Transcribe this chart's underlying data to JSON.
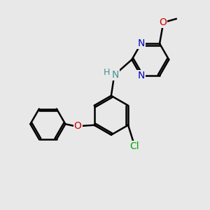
{
  "bg_color": "#e8e8e8",
  "bond_color": "#000000",
  "bond_width": 1.8,
  "atom_colors": {
    "N": "#0000cc",
    "O": "#cc0000",
    "Cl": "#00aa00",
    "NH_N": "#4a9090",
    "NH_H": "#4a9090"
  },
  "font_size_atom": 10,
  "font_size_H": 9
}
